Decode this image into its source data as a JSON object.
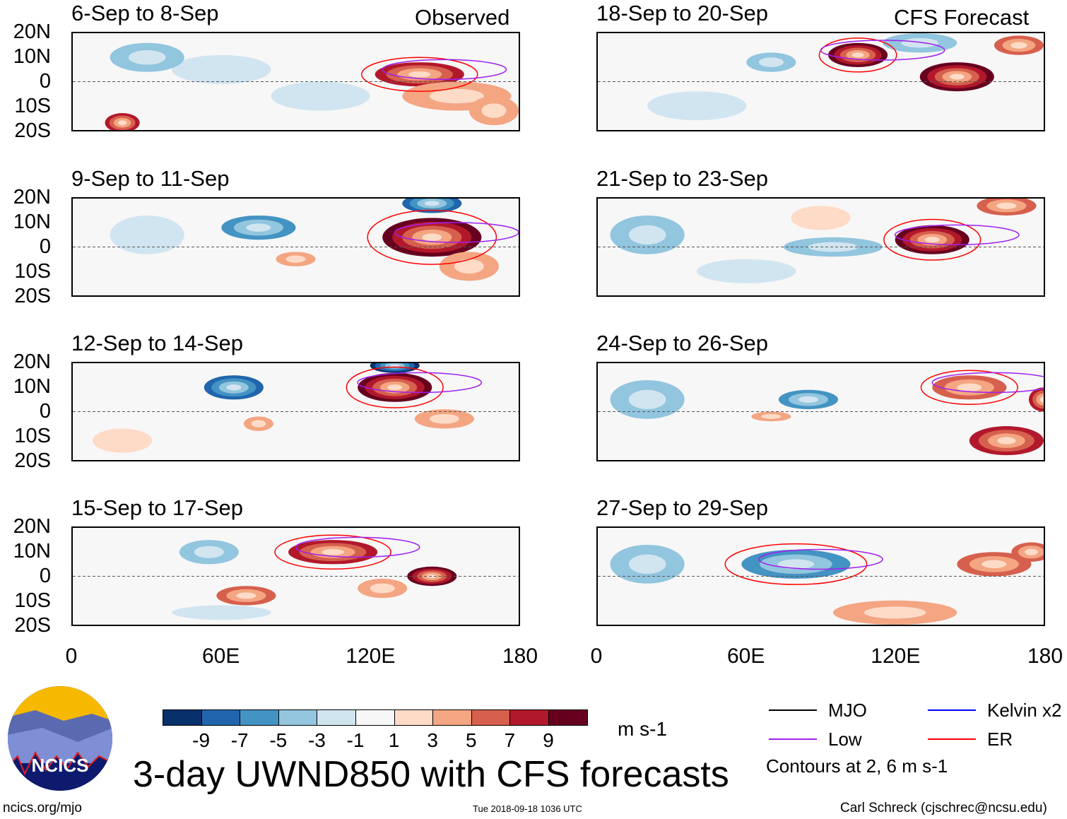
{
  "header": {
    "observed_label": "Observed",
    "forecast_label": "CFS Forecast"
  },
  "chart_data": {
    "type": "heatmap",
    "title": "3-day UWND850 with CFS forecasts",
    "units": "m s-1",
    "lat_ticks": [
      "20N",
      "10N",
      "0",
      "10S",
      "20S"
    ],
    "lon_ticks": [
      "0",
      "60E",
      "120E",
      "180"
    ],
    "lon_range": [
      0,
      180
    ],
    "lat_range": [
      -20,
      20
    ],
    "colorbar": {
      "levels": [
        "-9",
        "-7",
        "-5",
        "-3",
        "-1",
        "1",
        "3",
        "5",
        "7",
        "9"
      ],
      "colors": [
        "#08306b",
        "#2166ac",
        "#4393c3",
        "#92c5de",
        "#d1e5f0",
        "#f7f7f7",
        "#fddbc7",
        "#f4a582",
        "#d6604d",
        "#b2182b",
        "#67001f"
      ]
    },
    "panels": [
      {
        "title": "6-Sep to 8-Sep",
        "type": "observed",
        "features": [
          [
            140,
            3,
            18,
            5,
            8
          ],
          [
            155,
            -6,
            22,
            6,
            4
          ],
          [
            20,
            -17,
            7,
            4,
            8
          ],
          [
            60,
            5,
            20,
            6,
            -2
          ],
          [
            30,
            10,
            15,
            6,
            -3
          ],
          [
            100,
            -6,
            20,
            6,
            -2
          ],
          [
            170,
            -12,
            10,
            6,
            4
          ]
        ]
      },
      {
        "title": "18-Sep to 20-Sep",
        "type": "forecast",
        "features": [
          [
            105,
            11,
            12,
            5,
            9
          ],
          [
            145,
            2,
            15,
            6,
            9
          ],
          [
            70,
            8,
            10,
            4,
            -3
          ],
          [
            170,
            15,
            10,
            4,
            5
          ],
          [
            130,
            16,
            15,
            4,
            -4
          ],
          [
            40,
            -10,
            20,
            6,
            -2
          ]
        ]
      },
      {
        "title": "9-Sep to 11-Sep",
        "type": "observed",
        "features": [
          [
            145,
            4,
            20,
            8,
            9
          ],
          [
            145,
            18,
            12,
            4,
            -8
          ],
          [
            75,
            8,
            15,
            5,
            -5
          ],
          [
            90,
            -5,
            8,
            3,
            4
          ],
          [
            160,
            -8,
            12,
            6,
            4
          ],
          [
            30,
            5,
            15,
            8,
            -2
          ]
        ]
      },
      {
        "title": "21-Sep to 23-Sep",
        "type": "forecast",
        "features": [
          [
            135,
            3,
            15,
            6,
            9
          ],
          [
            165,
            17,
            12,
            4,
            6
          ],
          [
            95,
            0,
            20,
            4,
            -4
          ],
          [
            20,
            5,
            15,
            8,
            -3
          ],
          [
            90,
            12,
            12,
            5,
            2
          ],
          [
            60,
            -10,
            20,
            5,
            -2
          ]
        ]
      },
      {
        "title": "12-Sep to 14-Sep",
        "type": "observed",
        "features": [
          [
            130,
            10,
            15,
            6,
            9
          ],
          [
            130,
            19,
            10,
            3,
            -9
          ],
          [
            65,
            10,
            12,
            5,
            -7
          ],
          [
            75,
            -5,
            6,
            3,
            4
          ],
          [
            20,
            -12,
            12,
            5,
            2
          ],
          [
            150,
            -3,
            12,
            4,
            4
          ]
        ]
      },
      {
        "title": "24-Sep to 26-Sep",
        "type": "forecast",
        "features": [
          [
            150,
            10,
            15,
            5,
            6
          ],
          [
            165,
            -12,
            15,
            6,
            7
          ],
          [
            85,
            5,
            12,
            4,
            -6
          ],
          [
            20,
            5,
            15,
            8,
            -3
          ],
          [
            180,
            5,
            6,
            5,
            7
          ],
          [
            70,
            -2,
            8,
            2,
            3
          ]
        ]
      },
      {
        "title": "15-Sep to 17-Sep",
        "type": "observed",
        "features": [
          [
            105,
            10,
            18,
            5,
            8
          ],
          [
            145,
            0,
            10,
            4,
            9
          ],
          [
            70,
            -8,
            12,
            4,
            5
          ],
          [
            55,
            10,
            12,
            5,
            -4
          ],
          [
            60,
            -15,
            20,
            3,
            -2
          ],
          [
            125,
            -5,
            10,
            4,
            3
          ]
        ]
      },
      {
        "title": "27-Sep to 29-Sep",
        "type": "forecast",
        "features": [
          [
            80,
            5,
            22,
            6,
            -6
          ],
          [
            160,
            5,
            15,
            5,
            5
          ],
          [
            120,
            -15,
            25,
            5,
            4
          ],
          [
            20,
            5,
            15,
            8,
            -3
          ],
          [
            175,
            10,
            8,
            4,
            6
          ]
        ]
      }
    ],
    "legend": [
      {
        "label": "MJO",
        "color": "#000000"
      },
      {
        "label": "Kelvin x2",
        "color": "#0000ff"
      },
      {
        "label": "Low",
        "color": "#a020f0"
      },
      {
        "label": "ER",
        "color": "#ff0000"
      }
    ],
    "contour_note": "Contours at 2, 6 m s-1"
  },
  "footer": {
    "logo_text": "NCICS",
    "url": "ncics.org/mjo",
    "timestamp": "Tue 2018-09-18 1036 UTC",
    "credit": "Carl Schreck (cjschrec@ncsu.edu)"
  }
}
